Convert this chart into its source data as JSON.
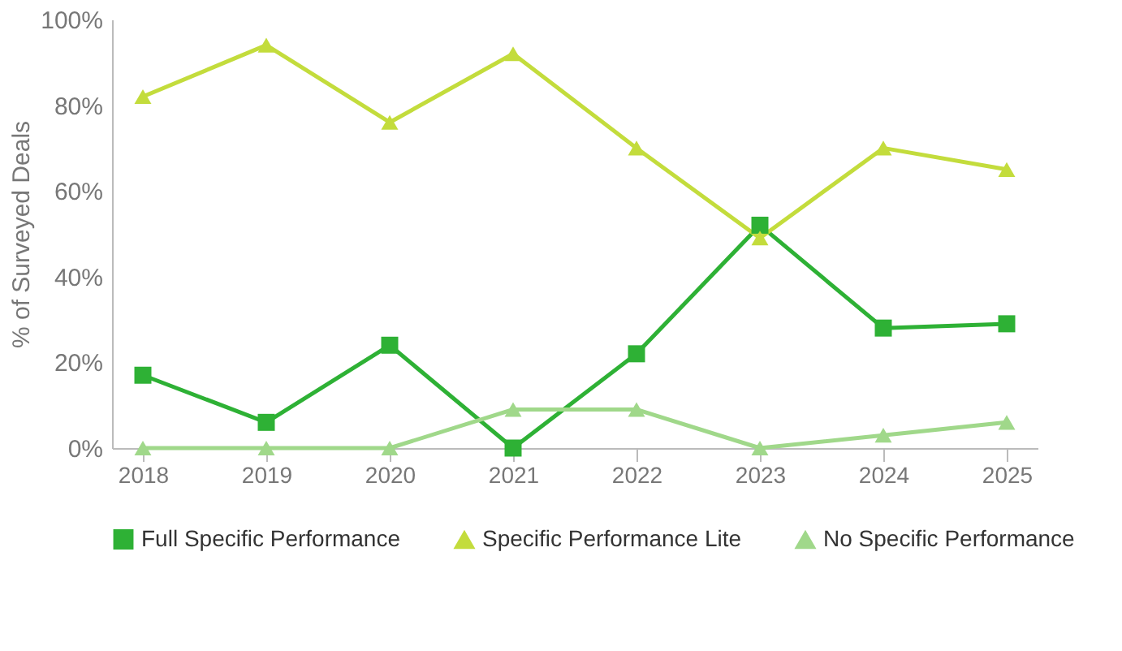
{
  "chart_data": {
    "type": "line",
    "ylabel": "% of Surveyed Deals",
    "categories": [
      "2018",
      "2019",
      "2020",
      "2021",
      "2022",
      "2023",
      "2024",
      "2025"
    ],
    "series": [
      {
        "name": "Full Specific Performance",
        "color": "#2eb135",
        "marker": "square",
        "values": [
          17,
          6,
          24,
          0,
          22,
          52,
          28,
          29
        ]
      },
      {
        "name": "Specific Performance Lite",
        "color": "#c3dc3c",
        "marker": "triangle",
        "values": [
          82,
          94,
          76,
          92,
          70,
          49,
          70,
          65
        ]
      },
      {
        "name": "No Specific Performance",
        "color": "#a0d88a",
        "marker": "triangle",
        "values": [
          0,
          0,
          0,
          9,
          9,
          0,
          3,
          6
        ]
      }
    ],
    "ylim": [
      0,
      100
    ],
    "yticks": [
      {
        "value": 0,
        "label": "0%"
      },
      {
        "value": 20,
        "label": "20%"
      },
      {
        "value": 40,
        "label": "40%"
      },
      {
        "value": 60,
        "label": "60%"
      },
      {
        "value": 80,
        "label": "80%"
      },
      {
        "value": 100,
        "label": "100%"
      }
    ],
    "grid": false,
    "legend": "bottom",
    "line_style": "solid"
  }
}
